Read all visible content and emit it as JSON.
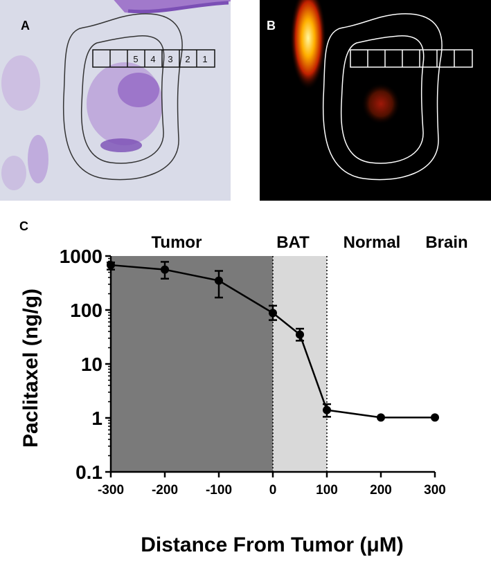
{
  "panels": {
    "a": {
      "label": "A",
      "box_labels": [
        "",
        "",
        "5",
        "4",
        "3",
        "2",
        "1"
      ]
    },
    "b": {
      "label": "B"
    },
    "c": {
      "label": "C"
    }
  },
  "colors": {
    "tissue_background": "#d9dbe8",
    "stain_purple": "#8e5fc2",
    "tumor_region": "#7a7a7a",
    "bat_region": "#d9d9d9",
    "line": "#000000",
    "outline_white": "#ffffff"
  },
  "chart_data": {
    "type": "line",
    "x": [
      -300,
      -200,
      -100,
      0,
      50,
      100,
      200,
      300
    ],
    "y": [
      680,
      560,
      350,
      88,
      35,
      1.4,
      1.02,
      1.02
    ],
    "y_err_low": [
      560,
      380,
      170,
      65,
      27,
      1.05,
      null,
      null
    ],
    "y_err_high": [
      760,
      780,
      530,
      120,
      45,
      1.8,
      null,
      null
    ],
    "xlabel": "Distance From Tumor (μM)",
    "ylabel": "Paclitaxel (ng/g)",
    "xlim": [
      -300,
      300
    ],
    "ylim": [
      0.1,
      1000
    ],
    "yscale": "log",
    "x_ticks": [
      -300,
      -200,
      -100,
      0,
      100,
      200,
      300
    ],
    "x_tick_labels": [
      "-300",
      "-200",
      "-100",
      "0",
      "100",
      "200",
      "300"
    ],
    "y_ticks": [
      0.1,
      1,
      10,
      100,
      1000
    ],
    "y_tick_labels": [
      "0.1",
      "1",
      "10",
      "100",
      "1000"
    ],
    "regions": [
      {
        "label": "Tumor",
        "x_start": -300,
        "x_end": 0
      },
      {
        "label": "BAT",
        "x_start": 0,
        "x_end": 100
      }
    ],
    "annotations": [
      "Normal",
      "Brain"
    ]
  }
}
